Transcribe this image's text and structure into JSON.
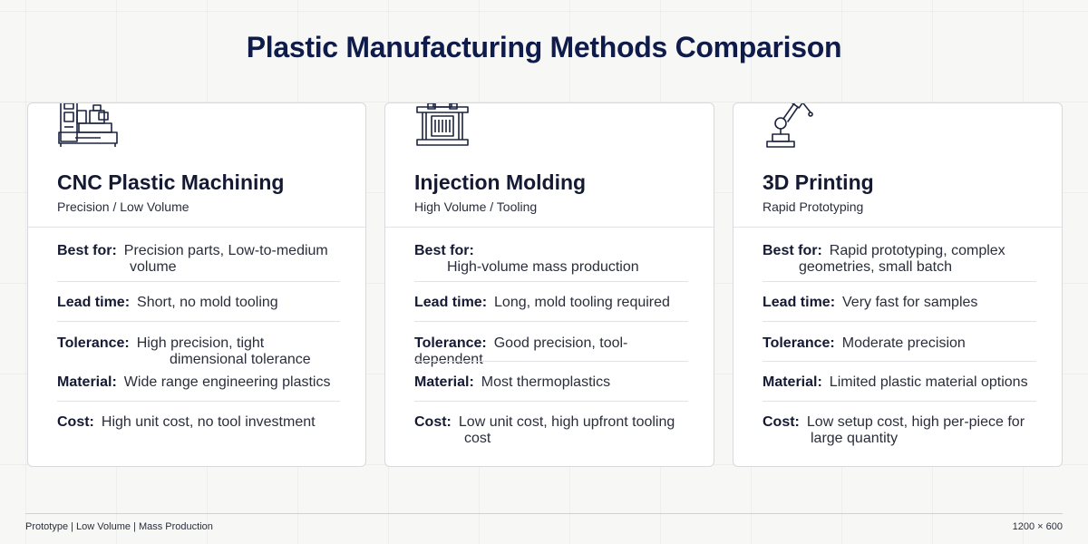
{
  "title": "Plastic Manufacturing Methods Comparison",
  "cards": [
    {
      "icon": "cnc-machine-icon",
      "title": "CNC Plastic Machining",
      "subtitle": "Precision / Low Volume",
      "rows": [
        {
          "label": "Best for:",
          "value": "Precision parts, Low-to-medium",
          "cont": "volume"
        },
        {
          "label": "Lead time:",
          "value": "Short, no mold tooling",
          "cont": ""
        },
        {
          "label": "Tolerance:",
          "value": "High precision, tight",
          "cont": "dimensional tolerance"
        },
        {
          "label": "Material:",
          "value": "Wide range engineering plastics",
          "cont": ""
        },
        {
          "label": "Cost:",
          "value": "High unit cost, no tool investment",
          "cont": ""
        }
      ]
    },
    {
      "icon": "injection-press-icon",
      "title": "Injection Molding",
      "subtitle": "High Volume / Tooling",
      "rows": [
        {
          "label": "Best for:",
          "value": "",
          "cont": "High-volume mass production"
        },
        {
          "label": "Lead time:",
          "value": "Long, mold tooling required",
          "cont": ""
        },
        {
          "label": "Tolerance:",
          "value": "Good precision, tool-dependent",
          "cont": ""
        },
        {
          "label": "Material:",
          "value": "Most thermoplastics",
          "cont": ""
        },
        {
          "label": "Cost:",
          "value": "Low unit cost, high upfront tooling",
          "cont": "cost"
        }
      ]
    },
    {
      "icon": "3d-printer-arm-icon",
      "title": "3D Printing",
      "subtitle": "Rapid Prototyping",
      "rows": [
        {
          "label": "Best for:",
          "value": "Rapid prototyping, complex",
          "cont": "geometries, small batch"
        },
        {
          "label": "Lead time:",
          "value": "Very fast for samples",
          "cont": ""
        },
        {
          "label": "Tolerance:",
          "value": "Moderate precision",
          "cont": ""
        },
        {
          "label": "Material:",
          "value": "Limited plastic material options",
          "cont": ""
        },
        {
          "label": "Cost:",
          "value": "Low setup cost, high per-piece for",
          "cont": "large quantity"
        }
      ]
    }
  ],
  "footer": {
    "left": "Prototype | Low Volume | Mass Production",
    "right": "1200 × 600"
  }
}
